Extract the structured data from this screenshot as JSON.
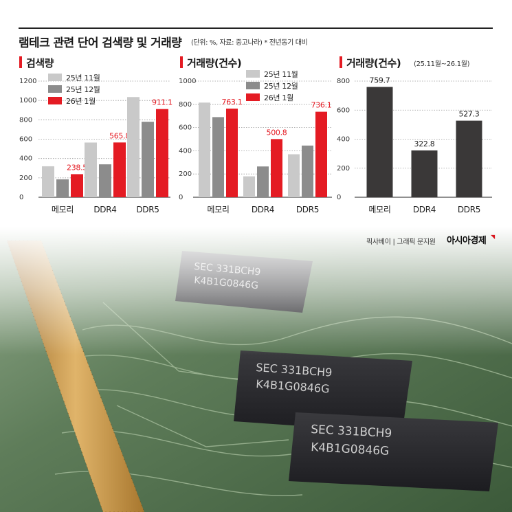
{
  "header": {
    "title": "램테크 관련 단어 검색량 및 거래량",
    "note": "(단위: %, 자료: 중고나라) * 전년동기 대비"
  },
  "footer": {
    "credit": "픽사베이 | 그래픽 문지원",
    "brand": "아시아경제"
  },
  "colors": {
    "series": [
      "#c9c9c9",
      "#8c8c8c",
      "#e41b23"
    ],
    "single": "#3a3838",
    "accent": "#e41b23"
  },
  "chart_data": [
    {
      "type": "bar",
      "title": "검색량",
      "subtitle": "",
      "categories": [
        "메모리",
        "DDR4",
        "DDR5"
      ],
      "series": [
        {
          "name": "25년 11월",
          "values": [
            320,
            565,
            1035
          ]
        },
        {
          "name": "25년 12월",
          "values": [
            185,
            340,
            780
          ]
        },
        {
          "name": "26년 1월",
          "values": [
            238.5,
            565.8,
            911.1
          ]
        }
      ],
      "data_labels": [
        "238.5",
        "565.8",
        "911.1"
      ],
      "yticks": [
        "0",
        "200",
        "400",
        "600",
        "800",
        "1000",
        "1200"
      ],
      "ylim": [
        0,
        1200
      ],
      "grid": true,
      "legend": "top-left"
    },
    {
      "type": "bar",
      "title": "거래량(건수)",
      "subtitle": "",
      "categories": [
        "메모리",
        "DDR4",
        "DDR5"
      ],
      "series": [
        {
          "name": "25년 11월",
          "values": [
            815,
            180,
            370
          ]
        },
        {
          "name": "25년 12월",
          "values": [
            690,
            265,
            445
          ]
        },
        {
          "name": "26년 1월",
          "values": [
            763.1,
            500.8,
            736.1
          ]
        }
      ],
      "data_labels": [
        "763.1",
        "500.8",
        "736.1"
      ],
      "yticks": [
        "0",
        "200",
        "400",
        "600",
        "800",
        "1000"
      ],
      "ylim": [
        0,
        1000
      ],
      "grid": true,
      "legend": "top-right"
    },
    {
      "type": "bar",
      "title": "거래량(건수)",
      "subtitle": "(25.11월~26.1월)",
      "categories": [
        "메모리",
        "DDR4",
        "DDR5"
      ],
      "series": [
        {
          "values": [
            759.7,
            322.8,
            527.3
          ]
        }
      ],
      "data_labels": [
        "759.7",
        "322.8",
        "527.3"
      ],
      "yticks": [
        "0",
        "200",
        "400",
        "600",
        "800"
      ],
      "ylim": [
        0,
        800
      ],
      "grid": true,
      "legend": "none"
    }
  ]
}
